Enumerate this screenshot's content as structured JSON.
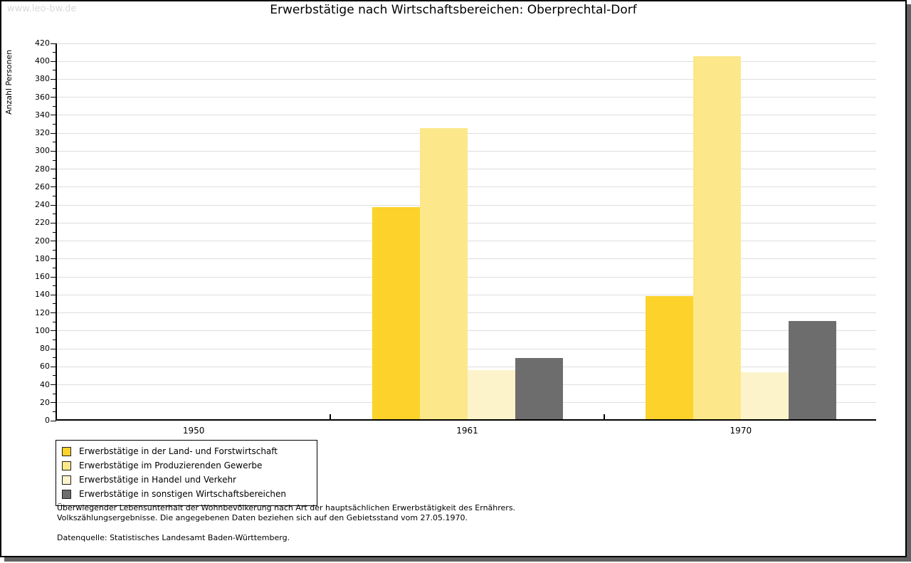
{
  "watermark": "www.leo-bw.de",
  "title": "Erwerbstätige nach Wirtschaftsbereichen: Oberprechtal-Dorf",
  "chart_data": {
    "type": "bar",
    "title": "Erwerbstätige nach Wirtschaftsbereichen: Oberprechtal-Dorf",
    "xlabel": "",
    "ylabel": "Anzahl Personen",
    "categories": [
      "1950",
      "1961",
      "1970"
    ],
    "series": [
      {
        "name": "Erwerbstätige in der Land- und Forstwirtschaft",
        "color": "#fcd22b",
        "values": [
          0,
          236,
          137
        ]
      },
      {
        "name": "Erwerbstätige im Produzierenden Gewerbe",
        "color": "#fce88a",
        "values": [
          0,
          324,
          404
        ]
      },
      {
        "name": "Erwerbstätige in Handel und Verkehr",
        "color": "#fdf3cb",
        "values": [
          0,
          55,
          52
        ]
      },
      {
        "name": "Erwerbstätige in sonstigen Wirtschaftsbereichen",
        "color": "#6d6d6d",
        "values": [
          0,
          68,
          109
        ]
      }
    ],
    "ylim": [
      0,
      420
    ],
    "ytick_step": 20,
    "yminor_step": 10,
    "grid": "horizontal major gridlines",
    "legend_position": "bottom-left box"
  },
  "footnotes": {
    "line1": "Überwiegender Lebensunterhalt der Wohnbevölkerung nach Art der hauptsächlichen Erwerbstätigkeit des Ernährers.",
    "line2": "Volkszählungsergebnisse. Die angegebenen Daten beziehen sich auf den Gebietsstand vom 27.05.1970.",
    "source": "Datenquelle: Statistisches Landesamt Baden-Württemberg."
  },
  "colors": {
    "gridline": "#dedede",
    "axis": "#000000",
    "watermark_text": "#d8d8d8",
    "frame_shadow": "#616161",
    "background": "#ffffff"
  }
}
